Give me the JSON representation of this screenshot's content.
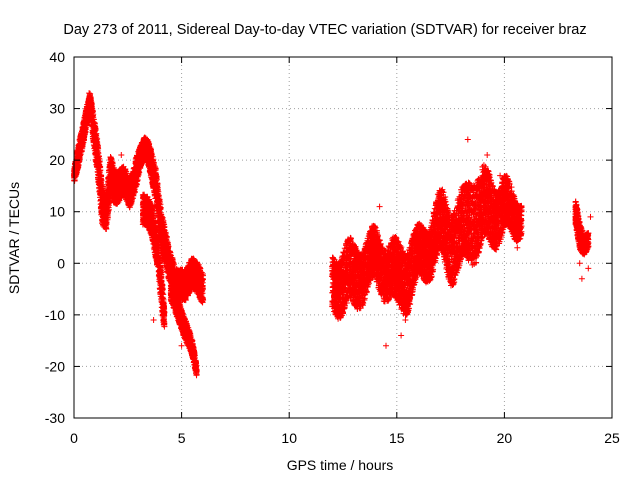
{
  "chart_data": {
    "type": "scatter",
    "title": "Day 273 of 2011, Sidereal Day-to-day VTEC variation (SDTVAR) for receiver braz",
    "xlabel": "GPS time / hours",
    "ylabel": "SDTVAR / TECUs",
    "xlim": [
      0,
      25
    ],
    "ylim": [
      -30,
      40
    ],
    "xticks": [
      "0",
      "5",
      "10",
      "15",
      "20",
      "25"
    ],
    "yticks": [
      "-30",
      "-20",
      "-10",
      "0",
      "10",
      "20",
      "30",
      "40"
    ],
    "grid": true,
    "marker": "+",
    "series": [
      {
        "name": "SDTVAR",
        "color": "#ff0000",
        "segments": [
          {
            "x": [
              0.0,
              0.2,
              0.4,
              0.6,
              0.75,
              0.9,
              1.1,
              1.3,
              1.5,
              1.7,
              2.0,
              2.3,
              2.6,
              2.9,
              3.1,
              3.3,
              3.5,
              3.8,
              4.1,
              4.4,
              4.7,
              5.0,
              5.2,
              5.5,
              5.8,
              6.0
            ],
            "y": [
              17,
              20,
              24,
              29,
              32,
              27,
              20,
              10,
              9,
              18,
              15,
              15,
              13,
              19,
              21,
              22,
              20,
              16,
              6,
              -1,
              -4,
              -3,
              -4,
              -3,
              -3,
              -4
            ],
            "spread": [
              1.5,
              2,
              2,
              2,
              1.5,
              3,
              3,
              4,
              3,
              4,
              3,
              3,
              2.5,
              3,
              2,
              2,
              2.5,
              3,
              4,
              3,
              3,
              3,
              3,
              3,
              3,
              3
            ]
          },
          {
            "x": [
              3.2,
              3.6,
              3.9,
              4.1,
              4.2
            ],
            "y": [
              10,
              8,
              3,
              -6,
              -11
            ],
            "spread": [
              3,
              3,
              3,
              3,
              2
            ]
          },
          {
            "x": [
              4.5,
              4.9,
              5.2,
              5.5,
              5.7
            ],
            "y": [
              -6,
              -9,
              -13,
              -17,
              -21
            ],
            "spread": [
              2,
              2,
              2,
              1.5,
              1
            ]
          },
          {
            "x": [
              12.0,
              12.5,
              13.0,
              13.5,
              14.0,
              14.5,
              15.0,
              15.5,
              16.0,
              16.5,
              17.0,
              17.5,
              18.0,
              18.5,
              19.0,
              19.5,
              20.0,
              20.5,
              20.8
            ],
            "y": [
              -4,
              -3,
              -3,
              -1,
              1,
              -1,
              -3,
              -2,
              1,
              3,
              7,
              5,
              5,
              10,
              10,
              10,
              11,
              9,
              9
            ],
            "spread": [
              5,
              6,
              6,
              5,
              5,
              5,
              6,
              6,
              5,
              5,
              6,
              7,
              7,
              8,
              7,
              6,
              5,
              4,
              3
            ]
          },
          {
            "x": [
              23.3,
              23.5,
              23.7,
              23.9
            ],
            "y": [
              9,
              5,
              4,
              5
            ],
            "spread": [
              2.5,
              2.5,
              2,
              1.5
            ]
          }
        ],
        "outliers": [
          {
            "x": 0.7,
            "y": 33
          },
          {
            "x": 2.2,
            "y": 21
          },
          {
            "x": 14.2,
            "y": 11
          },
          {
            "x": 14.5,
            "y": -16
          },
          {
            "x": 15.2,
            "y": -14
          },
          {
            "x": 15.4,
            "y": -11
          },
          {
            "x": 18.3,
            "y": 24
          },
          {
            "x": 19.2,
            "y": 21
          },
          {
            "x": 19.8,
            "y": 17
          },
          {
            "x": 20.6,
            "y": 3
          },
          {
            "x": 23.5,
            "y": 0
          },
          {
            "x": 23.6,
            "y": -3
          },
          {
            "x": 23.9,
            "y": -1
          },
          {
            "x": 24.0,
            "y": 9
          },
          {
            "x": 5.0,
            "y": -16
          },
          {
            "x": 3.7,
            "y": -11
          }
        ]
      }
    ]
  }
}
